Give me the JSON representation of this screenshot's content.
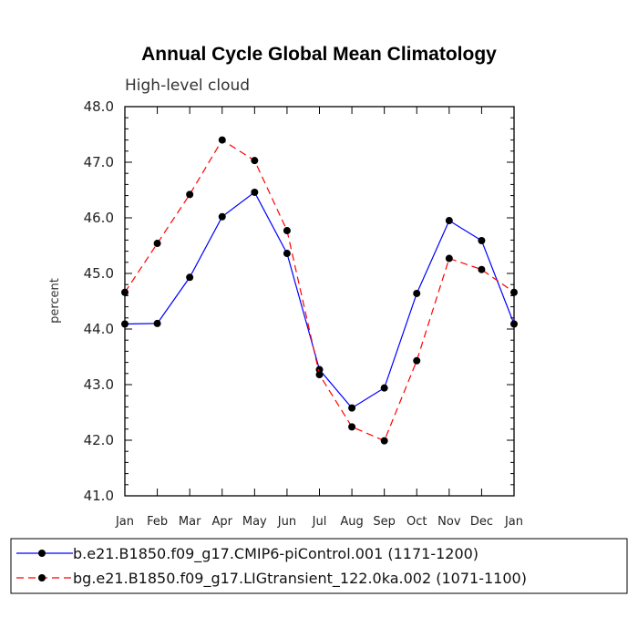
{
  "chart_data": {
    "type": "line",
    "title": "Annual Cycle Global Mean Climatology",
    "subtitle": "High-level cloud",
    "xlabel": "",
    "ylabel": "percent",
    "categories": [
      "Jan",
      "Feb",
      "Mar",
      "Apr",
      "May",
      "Jun",
      "Jul",
      "Aug",
      "Sep",
      "Oct",
      "Nov",
      "Dec",
      "Jan"
    ],
    "ylim": [
      41.0,
      48.0
    ],
    "yticks": [
      "41.0",
      "42.0",
      "43.0",
      "44.0",
      "45.0",
      "46.0",
      "47.0",
      "48.0"
    ],
    "grid": false,
    "legend_position": "bottom",
    "series": [
      {
        "name": "b.e21.B1850.f09_g17.CMIP6-piControl.001 (1171-1200)",
        "color": "#0000ff",
        "dash": "solid",
        "values": [
          44.09,
          44.1,
          44.93,
          46.02,
          46.46,
          45.36,
          43.27,
          42.58,
          42.94,
          44.64,
          45.95,
          45.59,
          44.09
        ]
      },
      {
        "name": "bg.e21.B1850.f09_g17.LIGtransient_122.0ka.002 (1071-1100)",
        "color": "#ff0000",
        "dash": "dashed",
        "values": [
          44.66,
          45.54,
          46.42,
          47.4,
          47.03,
          45.77,
          43.18,
          42.24,
          41.99,
          43.43,
          45.27,
          45.07,
          44.66
        ]
      }
    ]
  }
}
